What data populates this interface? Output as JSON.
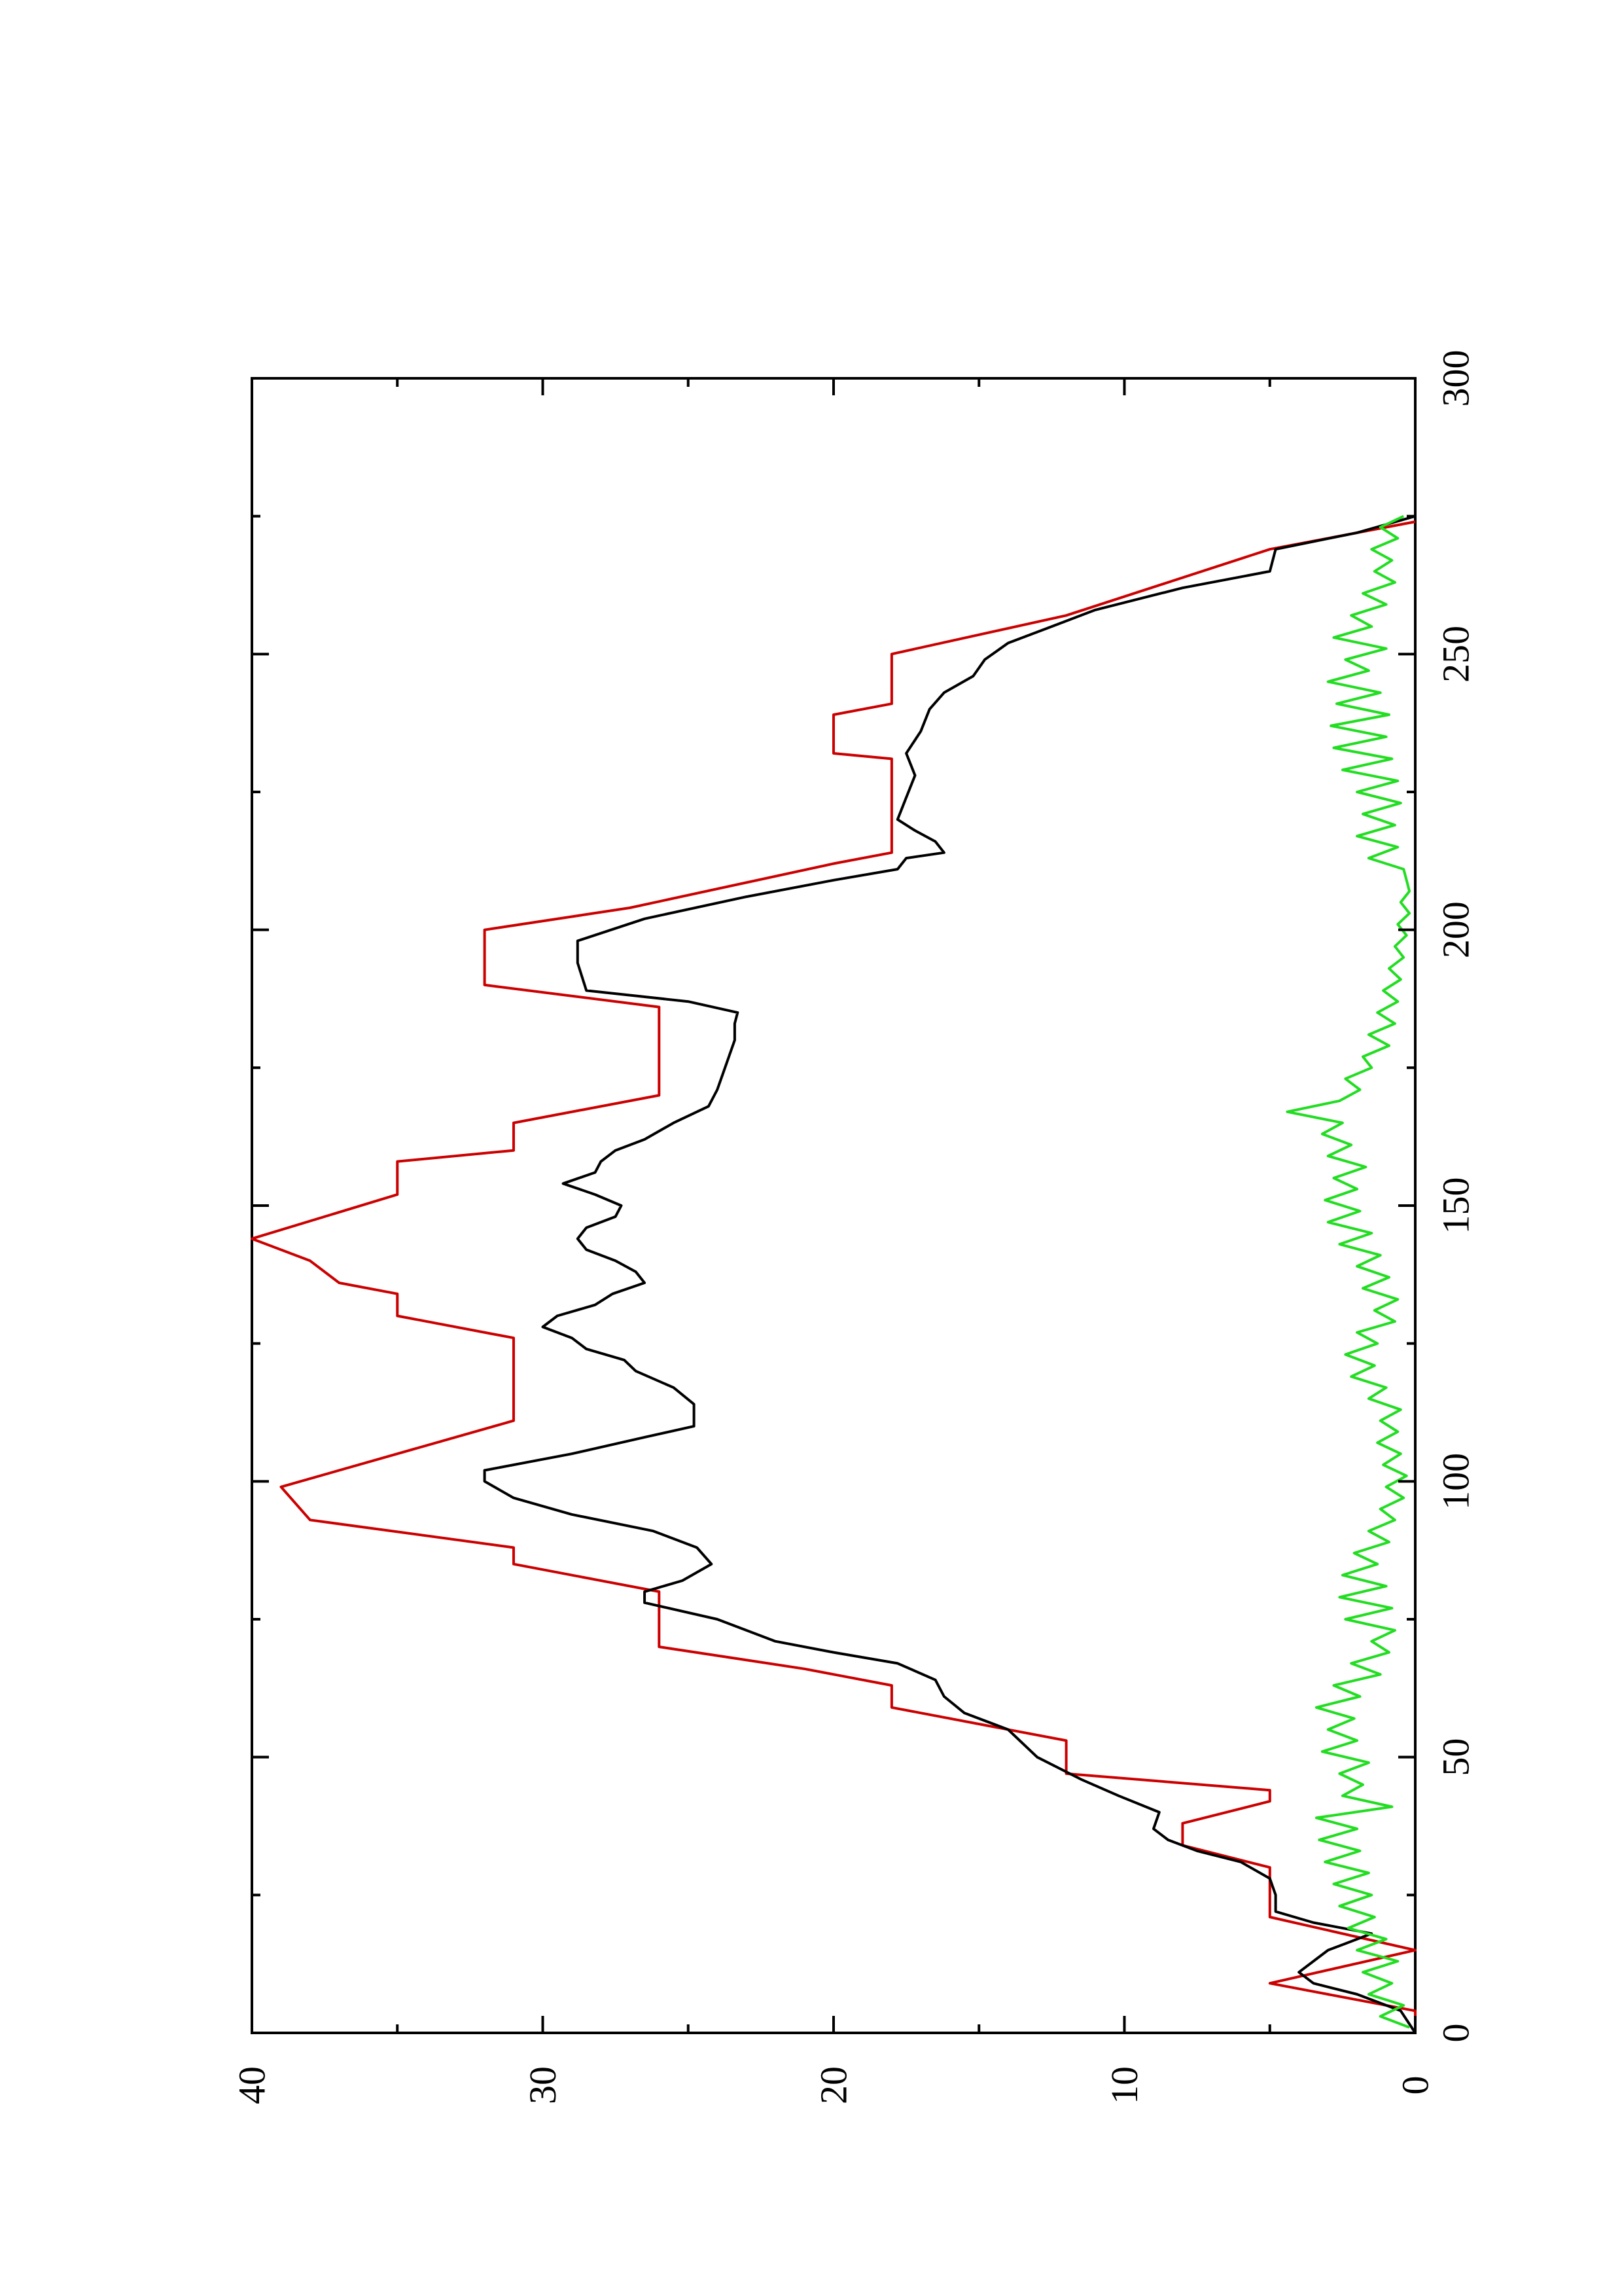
{
  "chart_data": {
    "type": "line",
    "orientation": "rotated 90 degrees counter-clockwise",
    "title": "",
    "xlabel": "",
    "ylabel": "",
    "xlim": [
      0,
      300
    ],
    "ylim": [
      0,
      40
    ],
    "x_ticks": [
      0,
      50,
      100,
      150,
      200,
      250,
      300
    ],
    "y_ticks": [
      0,
      10,
      20,
      30,
      40
    ],
    "x_tick_labels": [
      "0",
      "50",
      "100",
      "150",
      "200",
      "250",
      "300"
    ],
    "y_tick_labels": [
      "0",
      "10",
      "20",
      "30",
      "40"
    ],
    "grid": false,
    "legend": "none",
    "series": [
      {
        "color": "#cc0000",
        "style": "stepped segments",
        "points": [
          [
            0,
            0
          ],
          [
            4,
            0
          ],
          [
            9,
            5
          ],
          [
            15,
            0
          ],
          [
            21,
            5
          ],
          [
            30,
            5
          ],
          [
            34,
            8
          ],
          [
            38,
            8
          ],
          [
            42,
            5
          ],
          [
            44,
            5
          ],
          [
            47,
            12
          ],
          [
            53,
            12
          ],
          [
            59,
            18
          ],
          [
            63,
            18
          ],
          [
            66,
            21
          ],
          [
            70,
            26
          ],
          [
            80,
            26
          ],
          [
            85,
            31
          ],
          [
            88,
            31
          ],
          [
            93,
            38
          ],
          [
            99,
            39
          ],
          [
            111,
            31
          ],
          [
            126,
            31
          ],
          [
            130,
            35
          ],
          [
            134,
            35
          ],
          [
            136,
            37
          ],
          [
            140,
            38
          ],
          [
            144,
            40
          ],
          [
            152,
            35
          ],
          [
            158,
            35
          ],
          [
            160,
            31
          ],
          [
            165,
            31
          ],
          [
            170,
            26
          ],
          [
            186,
            26
          ],
          [
            190,
            32
          ],
          [
            200,
            32
          ],
          [
            204,
            27
          ],
          [
            212,
            20
          ],
          [
            214,
            18
          ],
          [
            231,
            18
          ],
          [
            232,
            20
          ],
          [
            239,
            20
          ],
          [
            241,
            18
          ],
          [
            250,
            18
          ],
          [
            257,
            12
          ],
          [
            269,
            5
          ],
          [
            274,
            0
          ]
        ]
      },
      {
        "color": "#000000",
        "style": "line",
        "points": [
          [
            0,
            0
          ],
          [
            4,
            0.5
          ],
          [
            7,
            2
          ],
          [
            9,
            3.5
          ],
          [
            11,
            4
          ],
          [
            13,
            3.5
          ],
          [
            15,
            3
          ],
          [
            16,
            2.5
          ],
          [
            18,
            1.5
          ],
          [
            20,
            3.5
          ],
          [
            22,
            4.8
          ],
          [
            25,
            4.8
          ],
          [
            28,
            5
          ],
          [
            31,
            6
          ],
          [
            33,
            7.5
          ],
          [
            35,
            8.5
          ],
          [
            37,
            9
          ],
          [
            40,
            8.8
          ],
          [
            43,
            10.2
          ],
          [
            46,
            11.5
          ],
          [
            50,
            13
          ],
          [
            55,
            14
          ],
          [
            58,
            15.5
          ],
          [
            61,
            16.2
          ],
          [
            64,
            16.5
          ],
          [
            67,
            17.8
          ],
          [
            69,
            20
          ],
          [
            71,
            22
          ],
          [
            73,
            23
          ],
          [
            75,
            24
          ],
          [
            78,
            26.5
          ],
          [
            80,
            26.5
          ],
          [
            82,
            25.2
          ],
          [
            85,
            24.2
          ],
          [
            88,
            24.7
          ],
          [
            91,
            26.2
          ],
          [
            94,
            29
          ],
          [
            97,
            31
          ],
          [
            100,
            32
          ],
          [
            102,
            32
          ],
          [
            105,
            29
          ],
          [
            108,
            26.5
          ],
          [
            110,
            24.8
          ],
          [
            114,
            24.8
          ],
          [
            117,
            25.5
          ],
          [
            120,
            26.8
          ],
          [
            122,
            27.2
          ],
          [
            124,
            28.5
          ],
          [
            126,
            29
          ],
          [
            128,
            30
          ],
          [
            130,
            29.5
          ],
          [
            132,
            28.2
          ],
          [
            134,
            27.6
          ],
          [
            136,
            26.5
          ],
          [
            138,
            26.8
          ],
          [
            140,
            27.5
          ],
          [
            142,
            28.5
          ],
          [
            144,
            28.8
          ],
          [
            146,
            28.5
          ],
          [
            148,
            27.5
          ],
          [
            150,
            27.3
          ],
          [
            152,
            28.2
          ],
          [
            154,
            29.3
          ],
          [
            156,
            28.2
          ],
          [
            158,
            28
          ],
          [
            160,
            27.5
          ],
          [
            162,
            26.5
          ],
          [
            165,
            25.5
          ],
          [
            168,
            24.3
          ],
          [
            171,
            24
          ],
          [
            174,
            23.8
          ],
          [
            177,
            23.6
          ],
          [
            180,
            23.4
          ],
          [
            183,
            23.4
          ],
          [
            185,
            23.3
          ],
          [
            187,
            25
          ],
          [
            189,
            28.5
          ],
          [
            194,
            28.8
          ],
          [
            198,
            28.8
          ],
          [
            202,
            26.5
          ],
          [
            206,
            23
          ],
          [
            209,
            20
          ],
          [
            211,
            17.8
          ],
          [
            213,
            17.5
          ],
          [
            214,
            16.2
          ],
          [
            216,
            16.5
          ],
          [
            218,
            17.2
          ],
          [
            220,
            17.8
          ],
          [
            224,
            17.5
          ],
          [
            228,
            17.2
          ],
          [
            232,
            17.5
          ],
          [
            236,
            17
          ],
          [
            240,
            16.7
          ],
          [
            243,
            16.2
          ],
          [
            246,
            15.2
          ],
          [
            249,
            14.8
          ],
          [
            252,
            14
          ],
          [
            255,
            12.5
          ],
          [
            258,
            11
          ],
          [
            262,
            8
          ],
          [
            265,
            5
          ],
          [
            269,
            4.8
          ],
          [
            272,
            2
          ],
          [
            275,
            0
          ]
        ]
      },
      {
        "color": "#22dd22",
        "style": "noisy line",
        "points": [
          [
            1,
            0.2
          ],
          [
            3,
            1.2
          ],
          [
            5,
            0.4
          ],
          [
            7,
            1.6
          ],
          [
            9,
            0.8
          ],
          [
            11,
            1.8
          ],
          [
            13,
            0.6
          ],
          [
            15,
            2.0
          ],
          [
            17,
            1.0
          ],
          [
            19,
            2.3
          ],
          [
            21,
            1.4
          ],
          [
            23,
            2.6
          ],
          [
            25,
            1.5
          ],
          [
            27,
            2.8
          ],
          [
            29,
            1.6
          ],
          [
            31,
            3.1
          ],
          [
            33,
            1.9
          ],
          [
            35,
            3.3
          ],
          [
            37,
            2.0
          ],
          [
            39,
            3.4
          ],
          [
            41,
            0.8
          ],
          [
            43,
            2.5
          ],
          [
            45,
            1.8
          ],
          [
            47,
            2.6
          ],
          [
            49,
            1.6
          ],
          [
            51,
            3.2
          ],
          [
            53,
            2.0
          ],
          [
            55,
            3.0
          ],
          [
            57,
            2.1
          ],
          [
            59,
            3.4
          ],
          [
            61,
            1.9
          ],
          [
            63,
            2.8
          ],
          [
            65,
            1.2
          ],
          [
            67,
            2.2
          ],
          [
            69,
            0.9
          ],
          [
            71,
            1.5
          ],
          [
            73,
            0.7
          ],
          [
            75,
            2.4
          ],
          [
            77,
            0.8
          ],
          [
            79,
            2.6
          ],
          [
            81,
            1.0
          ],
          [
            83,
            2.5
          ],
          [
            85,
            1.3
          ],
          [
            87,
            2.1
          ],
          [
            89,
            0.9
          ],
          [
            91,
            1.6
          ],
          [
            93,
            0.7
          ],
          [
            95,
            1.2
          ],
          [
            97,
            0.4
          ],
          [
            99,
            1.0
          ],
          [
            101,
            0.3
          ],
          [
            103,
            1.1
          ],
          [
            105,
            0.5
          ],
          [
            107,
            1.3
          ],
          [
            109,
            0.6
          ],
          [
            111,
            1.2
          ],
          [
            113,
            0.5
          ],
          [
            115,
            1.6
          ],
          [
            117,
            1.0
          ],
          [
            119,
            2.2
          ],
          [
            121,
            1.4
          ],
          [
            123,
            2.4
          ],
          [
            125,
            1.3
          ],
          [
            127,
            2.0
          ],
          [
            129,
            0.7
          ],
          [
            131,
            1.4
          ],
          [
            133,
            0.6
          ],
          [
            135,
            1.8
          ],
          [
            137,
            0.9
          ],
          [
            139,
            2.0
          ],
          [
            141,
            1.2
          ],
          [
            143,
            2.6
          ],
          [
            145,
            1.5
          ],
          [
            147,
            3.0
          ],
          [
            149,
            1.9
          ],
          [
            151,
            3.1
          ],
          [
            153,
            2.0
          ],
          [
            155,
            2.8
          ],
          [
            157,
            1.7
          ],
          [
            159,
            3.0
          ],
          [
            161,
            2.2
          ],
          [
            163,
            3.2
          ],
          [
            165,
            2.5
          ],
          [
            167,
            4.4
          ],
          [
            169,
            2.6
          ],
          [
            171,
            1.9
          ],
          [
            173,
            2.4
          ],
          [
            175,
            1.5
          ],
          [
            177,
            1.8
          ],
          [
            179,
            0.9
          ],
          [
            181,
            1.6
          ],
          [
            183,
            0.7
          ],
          [
            185,
            1.3
          ],
          [
            187,
            0.6
          ],
          [
            189,
            1.1
          ],
          [
            191,
            0.5
          ],
          [
            193,
            0.9
          ],
          [
            195,
            0.4
          ],
          [
            197,
            0.7
          ],
          [
            199,
            0.3
          ],
          [
            201,
            0.6
          ],
          [
            203,
            0.2
          ],
          [
            205,
            0.5
          ],
          [
            207,
            0.2
          ],
          [
            209,
            0.3
          ],
          [
            211,
            0.4
          ],
          [
            213,
            1.6
          ],
          [
            215,
            0.6
          ],
          [
            217,
            2.0
          ],
          [
            219,
            0.7
          ],
          [
            221,
            1.8
          ],
          [
            223,
            0.5
          ],
          [
            225,
            2.0
          ],
          [
            227,
            0.6
          ],
          [
            229,
            2.5
          ],
          [
            231,
            0.8
          ],
          [
            233,
            2.8
          ],
          [
            235,
            1.0
          ],
          [
            237,
            2.9
          ],
          [
            239,
            0.9
          ],
          [
            241,
            2.7
          ],
          [
            243,
            1.2
          ],
          [
            245,
            3.0
          ],
          [
            247,
            1.6
          ],
          [
            249,
            2.4
          ],
          [
            251,
            1.0
          ],
          [
            253,
            2.8
          ],
          [
            255,
            1.5
          ],
          [
            257,
            2.2
          ],
          [
            259,
            1.0
          ],
          [
            261,
            1.8
          ],
          [
            263,
            0.7
          ],
          [
            265,
            1.4
          ],
          [
            267,
            0.8
          ],
          [
            269,
            1.5
          ],
          [
            271,
            0.6
          ],
          [
            273,
            1.2
          ],
          [
            275,
            0.4
          ]
        ]
      }
    ]
  }
}
